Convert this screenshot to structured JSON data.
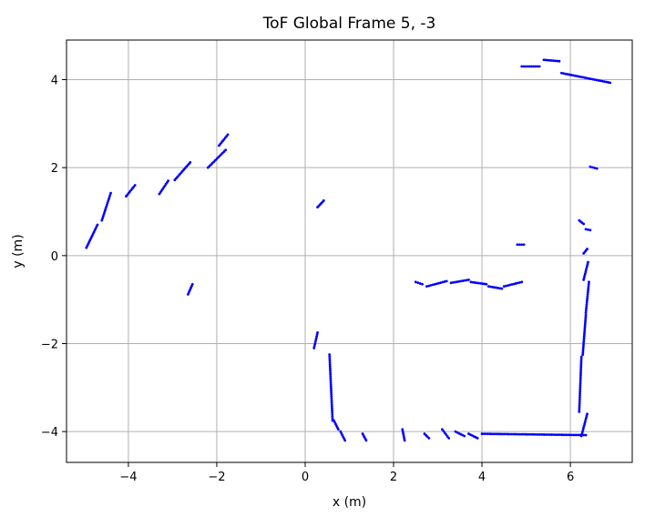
{
  "chart_data": {
    "type": "scatter",
    "title": "ToF Global Frame 5, -3",
    "xlabel": "x (m)",
    "ylabel": "y (m)",
    "xlim": [
      -5.4,
      7.4
    ],
    "ylim": [
      -4.7,
      4.9
    ],
    "grid": true,
    "x_ticks": [
      -4,
      -2,
      0,
      2,
      4,
      6
    ],
    "y_ticks": [
      -4,
      -2,
      0,
      2,
      4
    ],
    "x_tick_labels": [
      "−4",
      "−2",
      "0",
      "2",
      "4",
      "6"
    ],
    "y_tick_labels": [
      "−4",
      "−2",
      "0",
      "2",
      "4"
    ],
    "point_color": "#0000ff",
    "segments": [
      [
        [
          -4.95,
          0.18
        ],
        [
          -4.7,
          0.7
        ]
      ],
      [
        [
          -4.6,
          0.8
        ],
        [
          -4.4,
          1.42
        ]
      ],
      [
        [
          -4.05,
          1.35
        ],
        [
          -3.85,
          1.6
        ]
      ],
      [
        [
          -3.3,
          1.4
        ],
        [
          -3.1,
          1.7
        ]
      ],
      [
        [
          -2.95,
          1.72
        ],
        [
          -2.6,
          2.12
        ]
      ],
      [
        [
          -2.2,
          2.0
        ],
        [
          -1.8,
          2.4
        ]
      ],
      [
        [
          -1.95,
          2.5
        ],
        [
          -1.75,
          2.75
        ]
      ],
      [
        [
          -2.65,
          -0.88
        ],
        [
          -2.55,
          -0.65
        ]
      ],
      [
        [
          0.28,
          1.1
        ],
        [
          0.42,
          1.25
        ]
      ],
      [
        [
          0.2,
          -2.1
        ],
        [
          0.28,
          -1.75
        ]
      ],
      [
        [
          0.55,
          -2.25
        ],
        [
          0.62,
          -3.75
        ]
      ],
      [
        [
          0.65,
          -3.75
        ],
        [
          0.75,
          -3.95
        ]
      ],
      [
        [
          0.8,
          -4.0
        ],
        [
          0.9,
          -4.2
        ]
      ],
      [
        [
          1.3,
          -4.05
        ],
        [
          1.38,
          -4.2
        ]
      ],
      [
        [
          2.2,
          -3.95
        ],
        [
          2.25,
          -4.2
        ]
      ],
      [
        [
          2.5,
          -0.6
        ],
        [
          2.65,
          -0.65
        ]
      ],
      [
        [
          2.75,
          -0.7
        ],
        [
          3.2,
          -0.58
        ]
      ],
      [
        [
          3.3,
          -0.62
        ],
        [
          3.7,
          -0.55
        ]
      ],
      [
        [
          3.75,
          -0.6
        ],
        [
          4.1,
          -0.65
        ]
      ],
      [
        [
          4.15,
          -0.7
        ],
        [
          4.45,
          -0.75
        ]
      ],
      [
        [
          4.5,
          -0.7
        ],
        [
          4.9,
          -0.6
        ]
      ],
      [
        [
          4.8,
          0.25
        ],
        [
          4.95,
          0.25
        ]
      ],
      [
        [
          2.7,
          -4.05
        ],
        [
          2.8,
          -4.15
        ]
      ],
      [
        [
          3.1,
          -3.95
        ],
        [
          3.25,
          -4.15
        ]
      ],
      [
        [
          3.4,
          -4.0
        ],
        [
          3.6,
          -4.1
        ]
      ],
      [
        [
          3.7,
          -4.05
        ],
        [
          3.9,
          -4.15
        ]
      ],
      [
        [
          4.0,
          -4.05
        ],
        [
          6.35,
          -4.08
        ]
      ],
      [
        [
          6.25,
          -4.1
        ],
        [
          6.38,
          -3.6
        ]
      ],
      [
        [
          6.2,
          -3.55
        ],
        [
          6.25,
          -2.3
        ]
      ],
      [
        [
          6.28,
          -2.25
        ],
        [
          6.35,
          -1.35
        ]
      ],
      [
        [
          6.35,
          -1.3
        ],
        [
          6.42,
          -0.6
        ]
      ],
      [
        [
          6.3,
          -0.55
        ],
        [
          6.4,
          -0.15
        ]
      ],
      [
        [
          6.3,
          0.05
        ],
        [
          6.38,
          0.15
        ]
      ],
      [
        [
          6.2,
          0.8
        ],
        [
          6.3,
          0.72
        ]
      ],
      [
        [
          6.35,
          0.6
        ],
        [
          6.45,
          0.58
        ]
      ],
      [
        [
          6.45,
          2.02
        ],
        [
          6.6,
          1.98
        ]
      ],
      [
        [
          4.9,
          4.3
        ],
        [
          5.3,
          4.3
        ]
      ],
      [
        [
          5.4,
          4.45
        ],
        [
          5.75,
          4.42
        ]
      ],
      [
        [
          5.8,
          4.15
        ],
        [
          6.9,
          3.93
        ]
      ]
    ]
  }
}
